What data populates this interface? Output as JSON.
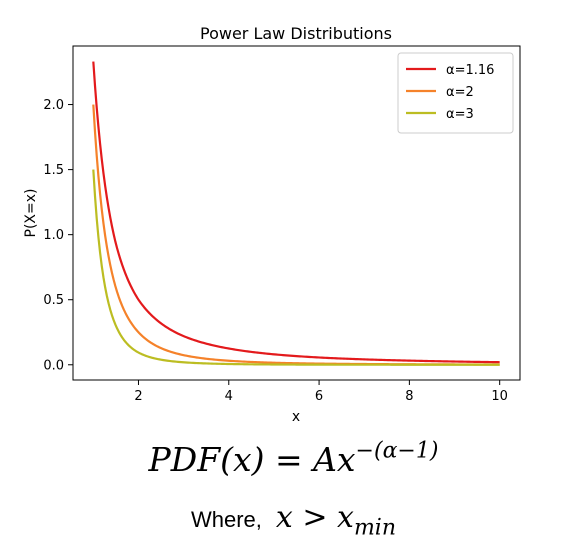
{
  "chart_data": {
    "type": "line",
    "title": "Power Law Distributions",
    "xlabel": "x",
    "ylabel": "P(X=x)",
    "xlim": [
      0.55,
      10.45
    ],
    "ylim": [
      -0.117,
      2.45
    ],
    "x_ticks": [
      2,
      4,
      6,
      8,
      10
    ],
    "x_tick_labels": [
      "2",
      "4",
      "6",
      "8",
      "10"
    ],
    "y_ticks": [
      0.0,
      0.5,
      1.0,
      1.5,
      2.0
    ],
    "y_tick_labels": [
      "0.0",
      "0.5",
      "1.0",
      "1.5",
      "2.0"
    ],
    "grid": false,
    "legend_position": "top-right",
    "x_range": [
      1,
      10
    ],
    "series": [
      {
        "name": "α=1.16",
        "color": "#e31a1c",
        "values_at_x": {
          "1": 2.33,
          "1.5": 0.93,
          "2": 0.5,
          "3": 0.22,
          "4": 0.125,
          "6": 0.056,
          "8": 0.032,
          "10": 0.02
        }
      },
      {
        "name": "α=2",
        "color": "#f5822a",
        "values_at_x": {
          "1": 2.0,
          "1.5": 0.59,
          "2": 0.25,
          "3": 0.074,
          "4": 0.031,
          "6": 0.009,
          "8": 0.004,
          "10": 0.002
        }
      },
      {
        "name": "α=3",
        "color": "#bcbd22",
        "values_at_x": {
          "1": 1.5,
          "1.5": 0.3,
          "2": 0.094,
          "3": 0.019,
          "4": 0.006,
          "6": 0.001,
          "8": 0.0004,
          "10": 0.0002
        }
      }
    ]
  },
  "formula": {
    "lhs": "PDF(x) = Ax",
    "exponent": "−(α−1)"
  },
  "condition": {
    "prefix": "Where,",
    "expr": "x > x",
    "subscript": "min"
  }
}
